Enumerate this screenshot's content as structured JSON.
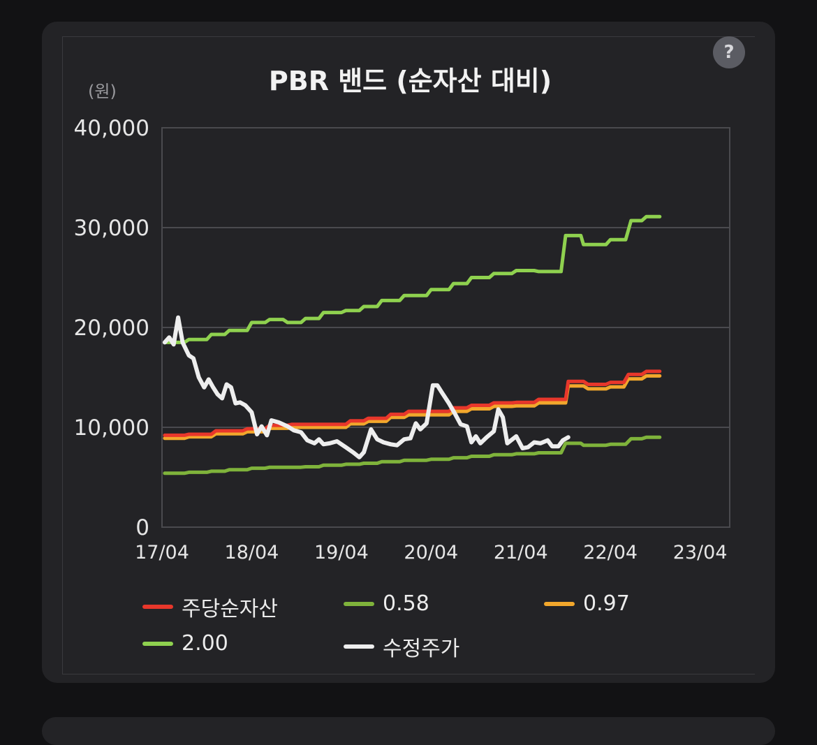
{
  "help_label": "?",
  "chart_data": {
    "type": "line",
    "title": "PBR 밴드 (순자산 대비)",
    "unit_label": "(원)",
    "ylim": [
      0,
      40000
    ],
    "y_ticks": [
      0,
      10000,
      20000,
      30000,
      40000
    ],
    "y_tick_labels": [
      "0",
      "10,000",
      "20,000",
      "30,000",
      "40,000"
    ],
    "x_range": [
      2017.25,
      2023.58
    ],
    "x_ticks": [
      2017.25,
      2018.25,
      2019.25,
      2020.25,
      2021.25,
      2022.25,
      2023.25
    ],
    "x_tick_labels": [
      "17/04",
      "18/04",
      "19/04",
      "20/04",
      "21/04",
      "22/04",
      "23/04"
    ],
    "grid": true,
    "legend_position": "bottom",
    "series": [
      {
        "name": "주당순자산",
        "color": "#e8372b",
        "points": [
          [
            2017.28,
            9200
          ],
          [
            2017.5,
            9200
          ],
          [
            2017.55,
            9300
          ],
          [
            2017.8,
            9300
          ],
          [
            2017.85,
            9650
          ],
          [
            2018.15,
            9650
          ],
          [
            2018.2,
            9850
          ],
          [
            2018.4,
            9850
          ],
          [
            2018.45,
            10200
          ],
          [
            2018.65,
            10200
          ],
          [
            2018.7,
            10300
          ],
          [
            2019.3,
            10300
          ],
          [
            2019.35,
            10650
          ],
          [
            2019.5,
            10650
          ],
          [
            2019.55,
            10900
          ],
          [
            2019.75,
            10900
          ],
          [
            2019.8,
            11300
          ],
          [
            2019.95,
            11300
          ],
          [
            2020.0,
            11600
          ],
          [
            2020.45,
            11600
          ],
          [
            2020.5,
            11950
          ],
          [
            2020.65,
            11950
          ],
          [
            2020.7,
            12200
          ],
          [
            2020.9,
            12200
          ],
          [
            2020.95,
            12450
          ],
          [
            2021.15,
            12450
          ],
          [
            2021.2,
            12500
          ],
          [
            2021.4,
            12500
          ],
          [
            2021.45,
            12800
          ],
          [
            2021.75,
            12800
          ],
          [
            2021.78,
            14600
          ],
          [
            2021.95,
            14600
          ],
          [
            2022.0,
            14300
          ],
          [
            2022.2,
            14300
          ],
          [
            2022.25,
            14500
          ],
          [
            2022.4,
            14500
          ],
          [
            2022.45,
            15300
          ],
          [
            2022.6,
            15300
          ],
          [
            2022.65,
            15600
          ],
          [
            2022.8,
            15600
          ]
        ]
      },
      {
        "name": "0.58",
        "color": "#7fb33b",
        "points": [
          [
            2017.28,
            5400
          ],
          [
            2017.5,
            5400
          ],
          [
            2017.55,
            5500
          ],
          [
            2017.75,
            5500
          ],
          [
            2017.8,
            5600
          ],
          [
            2017.95,
            5600
          ],
          [
            2018.0,
            5750
          ],
          [
            2018.2,
            5750
          ],
          [
            2018.25,
            5900
          ],
          [
            2018.4,
            5900
          ],
          [
            2018.45,
            6000
          ],
          [
            2018.6,
            6000
          ],
          [
            2018.65,
            6000
          ],
          [
            2018.8,
            6000
          ],
          [
            2018.85,
            6050
          ],
          [
            2019.0,
            6050
          ],
          [
            2019.05,
            6200
          ],
          [
            2019.25,
            6200
          ],
          [
            2019.3,
            6300
          ],
          [
            2019.45,
            6300
          ],
          [
            2019.5,
            6400
          ],
          [
            2019.65,
            6400
          ],
          [
            2019.7,
            6550
          ],
          [
            2019.9,
            6550
          ],
          [
            2019.95,
            6700
          ],
          [
            2020.2,
            6700
          ],
          [
            2020.25,
            6800
          ],
          [
            2020.45,
            6800
          ],
          [
            2020.5,
            6950
          ],
          [
            2020.65,
            6950
          ],
          [
            2020.7,
            7100
          ],
          [
            2020.9,
            7100
          ],
          [
            2020.95,
            7250
          ],
          [
            2021.15,
            7250
          ],
          [
            2021.2,
            7350
          ],
          [
            2021.4,
            7350
          ],
          [
            2021.45,
            7450
          ],
          [
            2021.7,
            7450
          ],
          [
            2021.75,
            8400
          ],
          [
            2021.92,
            8400
          ],
          [
            2021.95,
            8200
          ],
          [
            2022.2,
            8200
          ],
          [
            2022.25,
            8300
          ],
          [
            2022.42,
            8300
          ],
          [
            2022.48,
            8850
          ],
          [
            2022.6,
            8850
          ],
          [
            2022.65,
            9000
          ],
          [
            2022.8,
            9000
          ]
        ]
      },
      {
        "name": "0.97",
        "color": "#f2a72c",
        "points": [
          [
            2017.28,
            8900
          ],
          [
            2017.5,
            8900
          ],
          [
            2017.55,
            9050
          ],
          [
            2017.8,
            9050
          ],
          [
            2017.85,
            9350
          ],
          [
            2018.15,
            9350
          ],
          [
            2018.2,
            9550
          ],
          [
            2018.4,
            9550
          ],
          [
            2018.45,
            9900
          ],
          [
            2018.65,
            9900
          ],
          [
            2018.7,
            10000
          ],
          [
            2019.3,
            10000
          ],
          [
            2019.35,
            10350
          ],
          [
            2019.5,
            10350
          ],
          [
            2019.55,
            10600
          ],
          [
            2019.75,
            10600
          ],
          [
            2019.8,
            11000
          ],
          [
            2019.95,
            11000
          ],
          [
            2020.0,
            11250
          ],
          [
            2020.45,
            11250
          ],
          [
            2020.5,
            11600
          ],
          [
            2020.65,
            11600
          ],
          [
            2020.7,
            11850
          ],
          [
            2020.9,
            11850
          ],
          [
            2020.95,
            12100
          ],
          [
            2021.15,
            12100
          ],
          [
            2021.2,
            12150
          ],
          [
            2021.4,
            12150
          ],
          [
            2021.45,
            12450
          ],
          [
            2021.75,
            12450
          ],
          [
            2021.78,
            14150
          ],
          [
            2021.95,
            14150
          ],
          [
            2022.0,
            13850
          ],
          [
            2022.2,
            13850
          ],
          [
            2022.25,
            14050
          ],
          [
            2022.4,
            14050
          ],
          [
            2022.45,
            14850
          ],
          [
            2022.6,
            14850
          ],
          [
            2022.65,
            15150
          ],
          [
            2022.8,
            15150
          ]
        ]
      },
      {
        "name": "2.00",
        "color": "#8fd14f",
        "points": [
          [
            2017.28,
            18500
          ],
          [
            2017.5,
            18500
          ],
          [
            2017.55,
            18800
          ],
          [
            2017.75,
            18800
          ],
          [
            2017.8,
            19300
          ],
          [
            2017.95,
            19300
          ],
          [
            2018.0,
            19700
          ],
          [
            2018.2,
            19700
          ],
          [
            2018.25,
            20500
          ],
          [
            2018.4,
            20500
          ],
          [
            2018.45,
            20800
          ],
          [
            2018.6,
            20800
          ],
          [
            2018.65,
            20500
          ],
          [
            2018.8,
            20500
          ],
          [
            2018.85,
            20900
          ],
          [
            2019.0,
            20900
          ],
          [
            2019.05,
            21500
          ],
          [
            2019.25,
            21500
          ],
          [
            2019.3,
            21700
          ],
          [
            2019.45,
            21700
          ],
          [
            2019.5,
            22100
          ],
          [
            2019.65,
            22100
          ],
          [
            2019.7,
            22700
          ],
          [
            2019.9,
            22700
          ],
          [
            2019.95,
            23200
          ],
          [
            2020.2,
            23200
          ],
          [
            2020.25,
            23800
          ],
          [
            2020.45,
            23800
          ],
          [
            2020.5,
            24400
          ],
          [
            2020.65,
            24400
          ],
          [
            2020.7,
            25000
          ],
          [
            2020.9,
            25000
          ],
          [
            2020.95,
            25400
          ],
          [
            2021.15,
            25400
          ],
          [
            2021.2,
            25700
          ],
          [
            2021.4,
            25700
          ],
          [
            2021.45,
            25600
          ],
          [
            2021.7,
            25600
          ],
          [
            2021.75,
            29200
          ],
          [
            2021.92,
            29200
          ],
          [
            2021.95,
            28300
          ],
          [
            2022.2,
            28300
          ],
          [
            2022.25,
            28800
          ],
          [
            2022.42,
            28800
          ],
          [
            2022.48,
            30700
          ],
          [
            2022.6,
            30700
          ],
          [
            2022.65,
            31100
          ],
          [
            2022.8,
            31100
          ]
        ]
      },
      {
        "name": "수정주가",
        "color": "#eeeeee",
        "points": [
          [
            2017.28,
            18500
          ],
          [
            2017.33,
            19000
          ],
          [
            2017.38,
            18300
          ],
          [
            2017.43,
            21000
          ],
          [
            2017.48,
            18500
          ],
          [
            2017.55,
            17200
          ],
          [
            2017.6,
            16900
          ],
          [
            2017.66,
            15000
          ],
          [
            2017.72,
            14000
          ],
          [
            2017.77,
            14800
          ],
          [
            2017.82,
            14000
          ],
          [
            2017.87,
            13300
          ],
          [
            2017.92,
            12900
          ],
          [
            2017.97,
            14300
          ],
          [
            2018.02,
            14000
          ],
          [
            2018.07,
            12400
          ],
          [
            2018.12,
            12500
          ],
          [
            2018.18,
            12200
          ],
          [
            2018.25,
            11500
          ],
          [
            2018.31,
            9300
          ],
          [
            2018.36,
            10100
          ],
          [
            2018.42,
            9200
          ],
          [
            2018.47,
            10700
          ],
          [
            2018.55,
            10500
          ],
          [
            2018.65,
            10100
          ],
          [
            2018.72,
            9700
          ],
          [
            2018.8,
            9500
          ],
          [
            2018.87,
            8700
          ],
          [
            2018.95,
            8400
          ],
          [
            2019.0,
            8800
          ],
          [
            2019.05,
            8300
          ],
          [
            2019.12,
            8400
          ],
          [
            2019.2,
            8600
          ],
          [
            2019.3,
            8000
          ],
          [
            2019.38,
            7500
          ],
          [
            2019.45,
            7000
          ],
          [
            2019.5,
            7500
          ],
          [
            2019.58,
            9800
          ],
          [
            2019.65,
            8800
          ],
          [
            2019.72,
            8500
          ],
          [
            2019.8,
            8300
          ],
          [
            2019.87,
            8200
          ],
          [
            2019.95,
            8800
          ],
          [
            2020.02,
            8900
          ],
          [
            2020.08,
            10400
          ],
          [
            2020.13,
            9800
          ],
          [
            2020.2,
            10400
          ],
          [
            2020.27,
            14200
          ],
          [
            2020.32,
            14200
          ],
          [
            2020.37,
            13500
          ],
          [
            2020.45,
            12400
          ],
          [
            2020.52,
            11300
          ],
          [
            2020.58,
            10300
          ],
          [
            2020.65,
            10100
          ],
          [
            2020.7,
            8500
          ],
          [
            2020.75,
            9100
          ],
          [
            2020.8,
            8400
          ],
          [
            2020.87,
            9000
          ],
          [
            2020.95,
            9600
          ],
          [
            2021.0,
            11800
          ],
          [
            2021.05,
            11000
          ],
          [
            2021.1,
            8400
          ],
          [
            2021.2,
            9100
          ],
          [
            2021.27,
            7900
          ],
          [
            2021.33,
            8000
          ],
          [
            2021.4,
            8500
          ],
          [
            2021.47,
            8400
          ],
          [
            2021.55,
            8700
          ],
          [
            2021.6,
            8100
          ],
          [
            2021.67,
            8100
          ],
          [
            2021.72,
            8700
          ],
          [
            2021.78,
            9000
          ]
        ]
      }
    ],
    "legend": [
      {
        "name": "주당순자산",
        "color": "#e8372b"
      },
      {
        "name": "0.58",
        "color": "#7fb33b"
      },
      {
        "name": "0.97",
        "color": "#f2a72c"
      },
      {
        "name": "2.00",
        "color": "#8fd14f"
      },
      {
        "name": "수정주가",
        "color": "#eeeeee"
      }
    ]
  }
}
